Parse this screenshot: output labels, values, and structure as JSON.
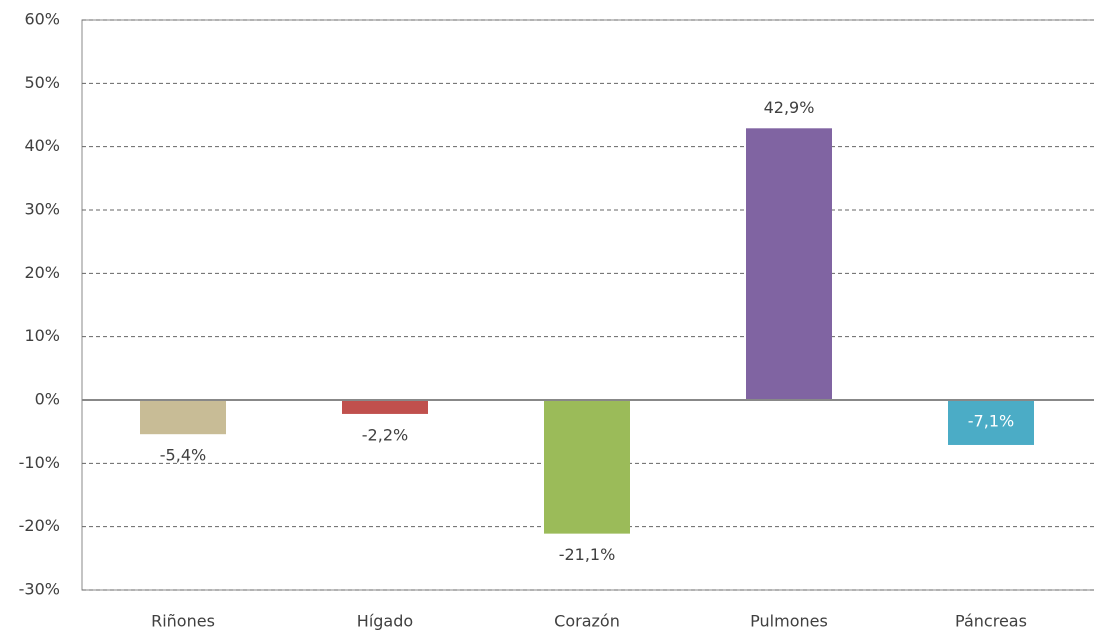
{
  "chart_data": {
    "type": "bar",
    "categories": [
      "Riñones",
      "Hígado",
      "Corazón",
      "Pulmones",
      "Páncreas"
    ],
    "values": [
      -5.4,
      -2.2,
      -21.1,
      42.9,
      -7.1
    ],
    "value_labels": [
      "-5,4%",
      "-2,2%",
      "-21,1%",
      "42,9%",
      "-7,1%"
    ],
    "colors": [
      "#c8bc96",
      "#c0504d",
      "#9bbb59",
      "#8064a2",
      "#4bacc6"
    ],
    "ylim": [
      -30,
      60
    ],
    "yticks": [
      {
        "value": -30,
        "label": "-30%"
      },
      {
        "value": -20,
        "label": "-20%"
      },
      {
        "value": -10,
        "label": "-10%"
      },
      {
        "value": 0,
        "label": "0%"
      },
      {
        "value": 10,
        "label": "10%"
      },
      {
        "value": 20,
        "label": "20%"
      },
      {
        "value": 30,
        "label": "30%"
      },
      {
        "value": 40,
        "label": "40%"
      },
      {
        "value": 50,
        "label": "50%"
      },
      {
        "value": 60,
        "label": "60%"
      }
    ],
    "grid": true
  }
}
